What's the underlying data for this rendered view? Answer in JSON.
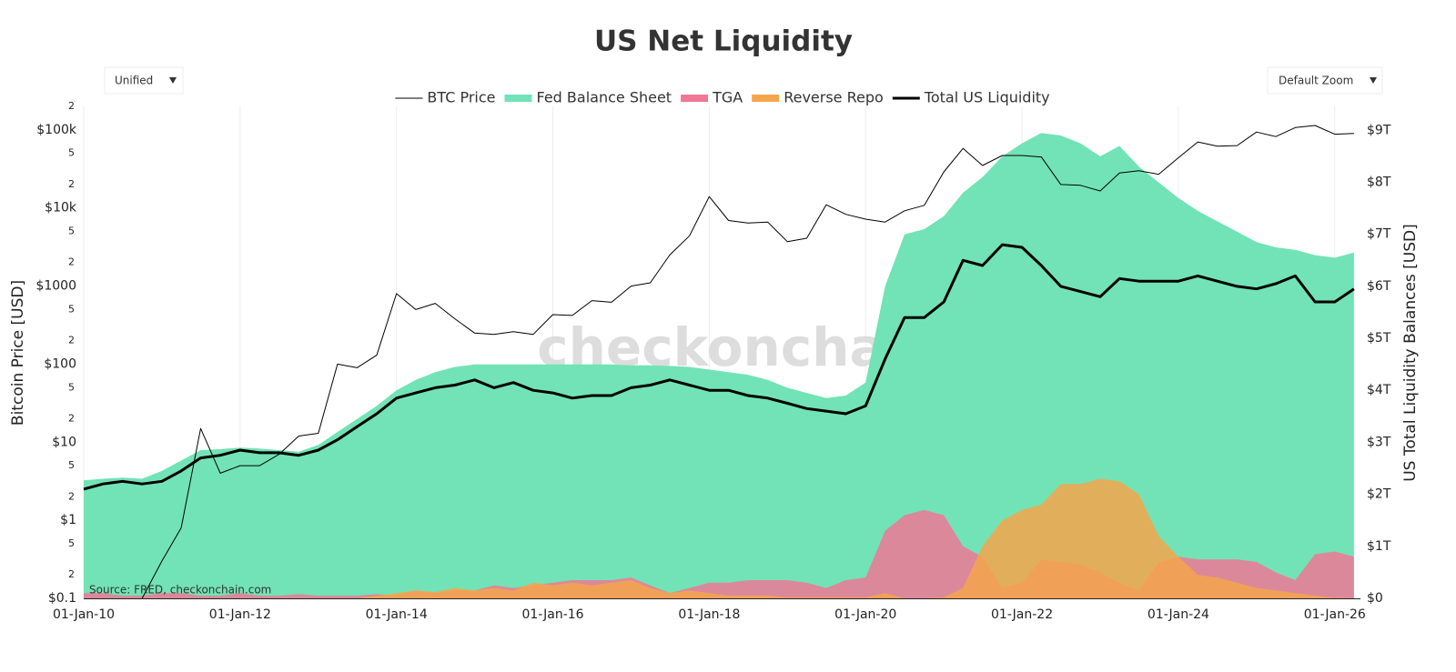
{
  "chart_data": {
    "type": "line",
    "title": "US Net Liquidity",
    "dropdowns": [
      "Unified",
      "Default Zoom"
    ],
    "watermark": "checkonchain",
    "source": "Source: FRED, checkonchain.com",
    "ylabel": "Bitcoin Price [USD]",
    "y2label": "US Total Liquidity Balances [USD]",
    "yscale": "log",
    "xgrid": true,
    "legend": "top",
    "xlim": [
      "2010-01-01",
      "2026-05-01"
    ],
    "xticks": [
      {
        "value": "2010-01-01",
        "label": "01-Jan-10"
      },
      {
        "value": "2012-01-01",
        "label": "01-Jan-12"
      },
      {
        "value": "2014-01-01",
        "label": "01-Jan-14"
      },
      {
        "value": "2016-01-01",
        "label": "01-Jan-16"
      },
      {
        "value": "2018-01-01",
        "label": "01-Jan-18"
      },
      {
        "value": "2020-01-01",
        "label": "01-Jan-20"
      },
      {
        "value": "2022-01-01",
        "label": "01-Jan-22"
      },
      {
        "value": "2024-01-01",
        "label": "01-Jan-24"
      },
      {
        "value": "2026-01-01",
        "label": "01-Jan-26"
      }
    ],
    "ylim": [
      0.1,
      200000
    ],
    "yticks": [
      {
        "value": 0.1,
        "label": "$0.1"
      },
      {
        "value": 0.2,
        "label": "2"
      },
      {
        "value": 0.5,
        "label": "5"
      },
      {
        "value": 1,
        "label": "$1"
      },
      2,
      5,
      {
        "value": 10,
        "label": "$10"
      },
      {
        "value": 20,
        "label": "2"
      },
      {
        "value": 50,
        "label": "5"
      },
      {
        "value": 100,
        "label": "$100"
      },
      {
        "value": 200,
        "label": "2"
      },
      {
        "value": 500,
        "label": "5"
      },
      {
        "value": 1000,
        "label": "$1000"
      },
      {
        "value": 2000,
        "label": "2"
      },
      {
        "value": 5000,
        "label": "5"
      },
      {
        "value": 10000,
        "label": "$10k"
      },
      {
        "value": 20000,
        "label": "2"
      },
      {
        "value": 50000,
        "label": "5"
      },
      {
        "value": 100000,
        "label": "$100k"
      },
      {
        "value": 200000,
        "label": "2"
      }
    ],
    "y2lim": [
      0,
      9460000000000.0
    ],
    "y2ticks": [
      {
        "value": 0,
        "label": "$0"
      },
      {
        "value": 1000000000000.0,
        "label": "$1T"
      },
      {
        "value": 2000000000000.0,
        "label": "$2T"
      },
      {
        "value": 3000000000000.0,
        "label": "$3T"
      },
      {
        "value": 4000000000000.0,
        "label": "$4T"
      },
      {
        "value": 5000000000000.0,
        "label": "$5T"
      },
      {
        "value": 6000000000000.0,
        "label": "$6T"
      },
      {
        "value": 7000000000000.0,
        "label": "$7T"
      },
      {
        "value": 8000000000000.0,
        "label": "$8T"
      },
      {
        "value": 9000000000000.0,
        "label": "$9T"
      }
    ],
    "x": [
      "2010-01-01",
      "2010-04-01",
      "2010-07-01",
      "2010-10-01",
      "2011-01-01",
      "2011-04-01",
      "2011-07-01",
      "2011-10-01",
      "2012-01-01",
      "2012-04-01",
      "2012-07-01",
      "2012-10-01",
      "2013-01-01",
      "2013-04-01",
      "2013-07-01",
      "2013-10-01",
      "2014-01-01",
      "2014-04-01",
      "2014-07-01",
      "2014-10-01",
      "2015-01-01",
      "2015-04-01",
      "2015-07-01",
      "2015-10-01",
      "2016-01-01",
      "2016-04-01",
      "2016-07-01",
      "2016-10-01",
      "2017-01-01",
      "2017-04-01",
      "2017-07-01",
      "2017-10-01",
      "2018-01-01",
      "2018-04-01",
      "2018-07-01",
      "2018-10-01",
      "2019-01-01",
      "2019-04-01",
      "2019-07-01",
      "2019-10-01",
      "2020-01-01",
      "2020-04-01",
      "2020-07-01",
      "2020-10-01",
      "2021-01-01",
      "2021-04-01",
      "2021-07-01",
      "2021-10-01",
      "2022-01-01",
      "2022-04-01",
      "2022-07-01",
      "2022-10-01",
      "2023-01-01",
      "2023-04-01",
      "2023-07-01",
      "2023-10-01",
      "2024-01-01",
      "2024-04-01",
      "2024-07-01",
      "2024-10-01",
      "2025-01-01",
      "2025-04-01",
      "2025-07-01",
      "2025-10-01",
      "2026-01-01",
      "2026-04-01"
    ],
    "series": [
      {
        "name": "BTC Price",
        "color": "#000000",
        "axis": "y",
        "fill": false,
        "width": 1,
        "values": [
          null,
          null,
          null,
          0.1,
          0.3,
          0.8,
          15,
          4,
          5,
          5,
          7,
          12,
          13,
          100,
          90,
          130,
          800,
          500,
          600,
          380,
          250,
          240,
          260,
          240,
          430,
          420,
          650,
          620,
          1000,
          1100,
          2500,
          4400,
          14000,
          6900,
          6400,
          6600,
          3700,
          4100,
          11000,
          8300,
          7200,
          6600,
          9200,
          10800,
          29000,
          58000,
          35000,
          47000,
          47000,
          45000,
          20000,
          19500,
          16500,
          28000,
          30000,
          27000,
          44000,
          70000,
          62000,
          63000,
          94000,
          82000,
          107000,
          114000,
          88000,
          90000
        ]
      },
      {
        "name": "Fed Balance Sheet",
        "color": "#72e3b6",
        "axis": "y2",
        "fill": true,
        "values": [
          2270000000000.0,
          2300000000000.0,
          2320000000000.0,
          2300000000000.0,
          2450000000000.0,
          2650000000000.0,
          2850000000000.0,
          2870000000000.0,
          2900000000000.0,
          2880000000000.0,
          2850000000000.0,
          2820000000000.0,
          2950000000000.0,
          3200000000000.0,
          3450000000000.0,
          3700000000000.0,
          4000000000000.0,
          4200000000000.0,
          4350000000000.0,
          4450000000000.0,
          4500000000000.0,
          4500000000000.0,
          4500000000000.0,
          4500000000000.0,
          4500000000000.0,
          4500000000000.0,
          4500000000000.0,
          4500000000000.0,
          4480000000000.0,
          4480000000000.0,
          4470000000000.0,
          4450000000000.0,
          4400000000000.0,
          4350000000000.0,
          4300000000000.0,
          4200000000000.0,
          4050000000000.0,
          3950000000000.0,
          3850000000000.0,
          3900000000000.0,
          4150000000000.0,
          6000000000000.0,
          7000000000000.0,
          7100000000000.0,
          7350000000000.0,
          7800000000000.0,
          8100000000000.0,
          8500000000000.0,
          8750000000000.0,
          8950000000000.0,
          8900000000000.0,
          8750000000000.0,
          8500000000000.0,
          8700000000000.0,
          8300000000000.0,
          8000000000000.0,
          7700000000000.0,
          7450000000000.0,
          7250000000000.0,
          7050000000000.0,
          6850000000000.0,
          6750000000000.0,
          6700000000000.0,
          6600000000000.0,
          6550000000000.0,
          6650000000000.0
        ]
      },
      {
        "name": "TGA",
        "color": "#ee7896",
        "axis": "y2",
        "fill": true,
        "values": [
          100000000000.0,
          100000000000.0,
          50000000000.0,
          50000000000.0,
          100000000000.0,
          100000000000.0,
          50000000000.0,
          50000000000.0,
          100000000000.0,
          50000000000.0,
          50000000000.0,
          80000000000.0,
          50000000000.0,
          50000000000.0,
          50000000000.0,
          80000000000.0,
          50000000000.0,
          150000000000.0,
          100000000000.0,
          150000000000.0,
          150000000000.0,
          250000000000.0,
          200000000000.0,
          250000000000.0,
          300000000000.0,
          350000000000.0,
          350000000000.0,
          350000000000.0,
          400000000000.0,
          250000000000.0,
          100000000000.0,
          200000000000.0,
          300000000000.0,
          300000000000.0,
          350000000000.0,
          350000000000.0,
          350000000000.0,
          300000000000.0,
          200000000000.0,
          350000000000.0,
          400000000000.0,
          1300000000000.0,
          1600000000000.0,
          1700000000000.0,
          1600000000000.0,
          1000000000000.0,
          800000000000.0,
          200000000000.0,
          300000000000.0,
          750000000000.0,
          700000000000.0,
          650000000000.0,
          500000000000.0,
          300000000000.0,
          150000000000.0,
          700000000000.0,
          800000000000.0,
          750000000000.0,
          750000000000.0,
          750000000000.0,
          700000000000.0,
          500000000000.0,
          350000000000.0,
          850000000000.0,
          900000000000.0,
          800000000000.0
        ]
      },
      {
        "name": "Reverse Repo",
        "color": "#f5a64b",
        "axis": "y2",
        "fill": true,
        "values": [
          0,
          0,
          0,
          0,
          0,
          0,
          0,
          0,
          0,
          0,
          0,
          0,
          0,
          0,
          0,
          50000000000.0,
          100000000000.0,
          150000000000.0,
          120000000000.0,
          200000000000.0,
          150000000000.0,
          200000000000.0,
          150000000000.0,
          300000000000.0,
          250000000000.0,
          300000000000.0,
          250000000000.0,
          300000000000.0,
          350000000000.0,
          200000000000.0,
          100000000000.0,
          150000000000.0,
          100000000000.0,
          50000000000.0,
          50000000000.0,
          50000000000.0,
          20000000000.0,
          20000000000.0,
          20000000000.0,
          20000000000.0,
          20000000000.0,
          100000000000.0,
          0,
          0,
          20000000000.0,
          200000000000.0,
          1000000000000.0,
          1500000000000.0,
          1700000000000.0,
          1800000000000.0,
          2200000000000.0,
          2200000000000.0,
          2300000000000.0,
          2250000000000.0,
          2000000000000.0,
          1200000000000.0,
          800000000000.0,
          450000000000.0,
          400000000000.0,
          300000000000.0,
          200000000000.0,
          150000000000.0,
          100000000000.0,
          50000000000.0,
          10000000000.0,
          0
        ]
      },
      {
        "name": "Total US Liquidity",
        "color": "#000000",
        "axis": "y2",
        "fill": false,
        "width": 3,
        "values": [
          2100000000000.0,
          2200000000000.0,
          2250000000000.0,
          2200000000000.0,
          2250000000000.0,
          2450000000000.0,
          2700000000000.0,
          2750000000000.0,
          2850000000000.0,
          2800000000000.0,
          2800000000000.0,
          2750000000000.0,
          2850000000000.0,
          3050000000000.0,
          3300000000000.0,
          3550000000000.0,
          3850000000000.0,
          3950000000000.0,
          4050000000000.0,
          4100000000000.0,
          4200000000000.0,
          4050000000000.0,
          4150000000000.0,
          4000000000000.0,
          3950000000000.0,
          3850000000000.0,
          3900000000000.0,
          3900000000000.0,
          4050000000000.0,
          4100000000000.0,
          4200000000000.0,
          4100000000000.0,
          4000000000000.0,
          4000000000000.0,
          3900000000000.0,
          3850000000000.0,
          3750000000000.0,
          3650000000000.0,
          3600000000000.0,
          3550000000000.0,
          3700000000000.0,
          4600000000000.0,
          5400000000000.0,
          5400000000000.0,
          5700000000000.0,
          6500000000000.0,
          6400000000000.0,
          6800000000000.0,
          6750000000000.0,
          6400000000000.0,
          6000000000000.0,
          5900000000000.0,
          5800000000000.0,
          6150000000000.0,
          6100000000000.0,
          6100000000000.0,
          6100000000000.0,
          6200000000000.0,
          6100000000000.0,
          6000000000000.0,
          5950000000000.0,
          6050000000000.0,
          6200000000000.0,
          5700000000000.0,
          5700000000000.0,
          5950000000000.0
        ]
      }
    ]
  }
}
